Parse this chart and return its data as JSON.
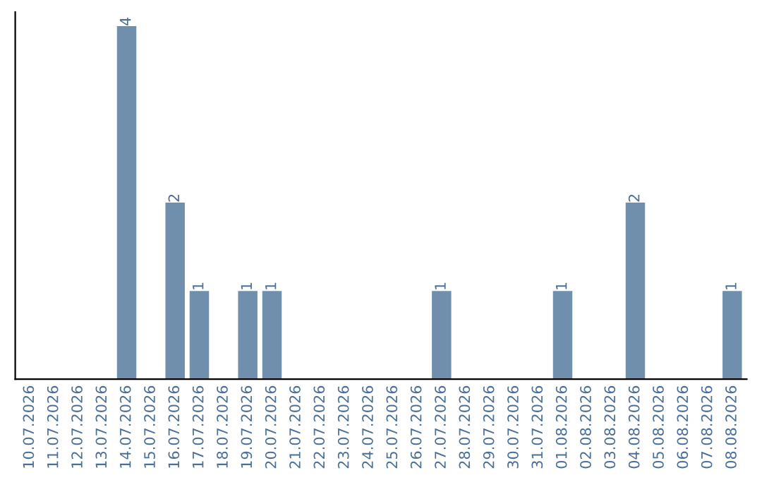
{
  "chart_data": {
    "type": "bar",
    "categories": [
      "10.07.2026",
      "11.07.2026",
      "12.07.2026",
      "13.07.2026",
      "14.07.2026",
      "15.07.2026",
      "16.07.2026",
      "17.07.2026",
      "18.07.2026",
      "19.07.2026",
      "20.07.2026",
      "21.07.2026",
      "22.07.2026",
      "23.07.2026",
      "24.07.2026",
      "25.07.2026",
      "26.07.2026",
      "27.07.2026",
      "28.07.2026",
      "29.07.2026",
      "30.07.2026",
      "31.07.2026",
      "01.08.2026",
      "02.08.2026",
      "03.08.2026",
      "04.08.2026",
      "05.08.2026",
      "06.08.2026",
      "07.08.2026",
      "08.08.2026"
    ],
    "values": [
      0,
      0,
      0,
      0,
      4,
      0,
      2,
      1,
      0,
      1,
      1,
      0,
      0,
      0,
      0,
      0,
      0,
      1,
      0,
      0,
      0,
      0,
      1,
      0,
      0,
      2,
      0,
      0,
      0,
      1
    ],
    "value_labels": [
      null,
      null,
      null,
      null,
      "4",
      null,
      "2",
      "1",
      null,
      "1",
      "1",
      null,
      null,
      null,
      null,
      null,
      null,
      "1",
      null,
      null,
      null,
      null,
      "1",
      null,
      null,
      "2",
      null,
      null,
      null,
      "1"
    ],
    "color": "#6f8fad",
    "grid": false,
    "legend": false
  }
}
